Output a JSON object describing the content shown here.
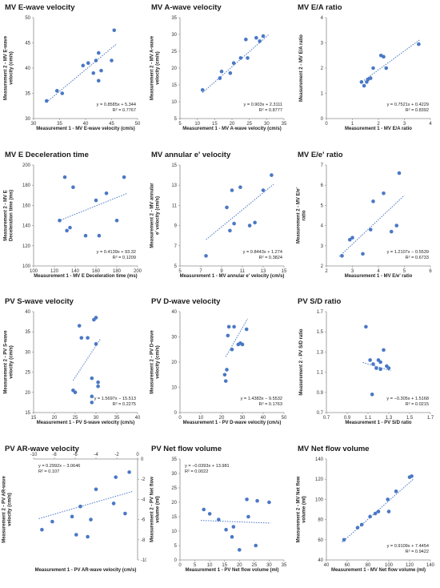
{
  "style": {
    "point_color": "#4a78c4",
    "trend_color": "#4a78c4",
    "axis_color": "#8c8c8c"
  },
  "chart_data": [
    {
      "type": "scatter",
      "title": "MV E-wave velocity",
      "xlabel": "Measurement 1 - MV E-wave velocity (cm/s)",
      "ylabel": "Measurement 2 - MV E-wave velocity (cm/s)",
      "xlim": [
        30,
        50
      ],
      "ylim": [
        30,
        50
      ],
      "xticks": [
        30,
        35,
        40,
        45,
        50
      ],
      "yticks": [
        30,
        35,
        40,
        45,
        50
      ],
      "points": [
        [
          32.5,
          33.5
        ],
        [
          34.5,
          35.5
        ],
        [
          35.5,
          35.0
        ],
        [
          39.5,
          40.5
        ],
        [
          40.5,
          41.0
        ],
        [
          41.5,
          39.0
        ],
        [
          42.0,
          41.5
        ],
        [
          42.5,
          43.0
        ],
        [
          42.5,
          37.5
        ],
        [
          43.0,
          39.5
        ],
        [
          45.0,
          41.5
        ],
        [
          45.5,
          47.5
        ]
      ],
      "trend": {
        "slope": 0.8585,
        "intercept": 5.344,
        "x_range": [
          32.5,
          46
        ]
      },
      "equation": [
        "y = 0.8585x + 5.344",
        "R² = 0.7767"
      ],
      "eq_pos": "bottom-right"
    },
    {
      "type": "scatter",
      "title": "MV A-wave velocity",
      "xlabel": "Measurement 1 - MV A-wave velocity (cm/s)",
      "ylabel": "Measurement 2 - MV A-wave velocity (cm/s)",
      "xlim": [
        5,
        35
      ],
      "ylim": [
        5,
        35
      ],
      "xticks": [
        5,
        10,
        15,
        20,
        25,
        30,
        35
      ],
      "yticks": [
        5,
        10,
        15,
        20,
        25,
        30,
        35
      ],
      "points": [
        [
          11.5,
          13.5
        ],
        [
          16.5,
          17.0
        ],
        [
          17.0,
          19.0
        ],
        [
          19.5,
          18.5
        ],
        [
          20.5,
          21.5
        ],
        [
          22.5,
          23.0
        ],
        [
          24.0,
          28.5
        ],
        [
          24.5,
          23.0
        ],
        [
          27.0,
          29.0
        ],
        [
          28.0,
          28.0
        ],
        [
          29.0,
          29.5
        ]
      ],
      "trend": {
        "slope": 0.903,
        "intercept": 2.3111,
        "x_range": [
          11.5,
          30.5
        ]
      },
      "equation": [
        "y = 0.903x + 2.3111",
        "R² = 0.8777"
      ],
      "eq_pos": "bottom-right"
    },
    {
      "type": "scatter",
      "title": "MV E/A ratio",
      "xlabel": "Measurement 1 - MV E/A ratio",
      "ylabel": "Measurement 2 - MV E/A ratio",
      "xlim": [
        0,
        4
      ],
      "ylim": [
        0,
        4
      ],
      "xticks": [
        0,
        1,
        2,
        3,
        4
      ],
      "yticks": [
        0,
        1,
        2,
        3,
        4
      ],
      "points": [
        [
          1.35,
          1.45
        ],
        [
          1.45,
          1.3
        ],
        [
          1.55,
          1.45
        ],
        [
          1.6,
          1.55
        ],
        [
          1.7,
          1.6
        ],
        [
          1.8,
          2.0
        ],
        [
          2.1,
          2.5
        ],
        [
          2.2,
          2.45
        ],
        [
          2.3,
          2.0
        ],
        [
          3.55,
          2.95
        ]
      ],
      "trend": {
        "slope": 0.7521,
        "intercept": 0.4229,
        "x_range": [
          1.3,
          3.6
        ]
      },
      "equation": [
        "y = 0.7521x + 0.4229",
        "R² = 0.8392"
      ],
      "eq_pos": "bottom-right"
    },
    {
      "type": "scatter",
      "title": "MV E Deceleration time",
      "xlabel": "Measurement 1 - MV E Deceleration time (ms)",
      "ylabel": "Measurement 2 - MV E Deceleration time (ms)",
      "xlim": [
        100,
        200
      ],
      "ylim": [
        100,
        200
      ],
      "xticks": [
        100,
        120,
        140,
        160,
        180,
        200
      ],
      "yticks": [
        100,
        120,
        140,
        160,
        180,
        200
      ],
      "points": [
        [
          125,
          145
        ],
        [
          130,
          188
        ],
        [
          132,
          135
        ],
        [
          135,
          138
        ],
        [
          138,
          178
        ],
        [
          150,
          130
        ],
        [
          160,
          165
        ],
        [
          163,
          130
        ],
        [
          170,
          172
        ],
        [
          180,
          145
        ],
        [
          187,
          188
        ]
      ],
      "trend": {
        "slope": 0.4139,
        "intercept": 93.32,
        "x_range": [
          124,
          190
        ]
      },
      "equation": [
        "y = 0.4139x + 93.32",
        "R² = 0.1209"
      ],
      "eq_pos": "bottom-right"
    },
    {
      "type": "scatter",
      "title": "MV annular e' velocity",
      "xlabel": "Measurement 1 - MV annular e' velocity (cm/s)",
      "ylabel": "Measurement 2 - MV annular e' velocity (cm/s)",
      "xlim": [
        5,
        15
      ],
      "ylim": [
        5,
        15
      ],
      "xticks": [
        5,
        7,
        9,
        11,
        13,
        15
      ],
      "yticks": [
        5,
        7,
        9,
        11,
        13,
        15
      ],
      "points": [
        [
          7.5,
          6.0
        ],
        [
          9.5,
          10.8
        ],
        [
          9.8,
          8.5
        ],
        [
          10.0,
          12.5
        ],
        [
          10.2,
          9.2
        ],
        [
          10.8,
          12.8
        ],
        [
          11.7,
          9.0
        ],
        [
          12.2,
          9.3
        ],
        [
          13.0,
          12.5
        ],
        [
          13.8,
          14.0
        ]
      ],
      "trend": {
        "slope": 0.8443,
        "intercept": 1.274,
        "x_range": [
          7.5,
          14
        ]
      },
      "equation": [
        "y = 0.8443x + 1.274",
        "R² = 0.3824"
      ],
      "eq_pos": "bottom-right"
    },
    {
      "type": "scatter",
      "title": "MV E/e' ratio",
      "xlabel": "Measurement 1 - MV E/e' ratio",
      "ylabel": "Measurement 2 - MV E/e' ratio",
      "xlim": [
        2,
        6
      ],
      "ylim": [
        2,
        7
      ],
      "xticks": [
        2,
        3,
        4,
        5,
        6
      ],
      "yticks": [
        2,
        3,
        4,
        5,
        6,
        7
      ],
      "points": [
        [
          2.6,
          2.5
        ],
        [
          2.9,
          3.3
        ],
        [
          3.0,
          3.4
        ],
        [
          3.4,
          2.6
        ],
        [
          3.7,
          3.8
        ],
        [
          3.8,
          5.2
        ],
        [
          4.2,
          5.6
        ],
        [
          4.5,
          3.7
        ],
        [
          4.7,
          4.0
        ],
        [
          4.8,
          6.6
        ]
      ],
      "trend": {
        "slope": 1.2107,
        "intercept": -0.5539,
        "x_range": [
          2.5,
          5.0
        ]
      },
      "equation": [
        "y = 1.2107x − 0.5539",
        "R² = 0.6733"
      ],
      "eq_pos": "bottom-right"
    },
    {
      "type": "scatter",
      "title": "PV S-wave velocity",
      "xlabel": "Measurement 1 - PV S-wave velocity (cm/s)",
      "ylabel": "Measurement 2 - PV S-wave velocity (cm/s)",
      "xlim": [
        15,
        40
      ],
      "ylim": [
        15,
        40
      ],
      "xticks": [
        15,
        20,
        25,
        30,
        35,
        40
      ],
      "yticks": [
        15,
        20,
        25,
        30,
        35,
        40
      ],
      "points": [
        [
          24.5,
          20.5
        ],
        [
          25.0,
          20.0
        ],
        [
          26.0,
          36.5
        ],
        [
          26.5,
          33.5
        ],
        [
          28.0,
          33.5
        ],
        [
          29.0,
          23.5
        ],
        [
          29.5,
          38.0
        ],
        [
          30.0,
          32.0
        ],
        [
          30.0,
          38.5
        ],
        [
          30.5,
          22.5
        ],
        [
          30.5,
          21.5
        ],
        [
          29.0,
          19.0
        ],
        [
          29.0,
          17.5
        ]
      ],
      "trend": {
        "slope": 1.5697,
        "intercept": -15.513,
        "x_range": [
          24.5,
          31
        ]
      },
      "equation": [
        "y = 1.5697x − 15.513",
        "R² = 0.2275"
      ],
      "eq_pos": "bottom-right"
    },
    {
      "type": "scatter",
      "title": "PV D-wave velocity",
      "xlabel": "Measurement 1 - PV D-wave velocity (cm/s)",
      "ylabel": "Measurement 2 - PV D-wave velocity (cm/s)",
      "xlim": [
        0,
        50
      ],
      "ylim": [
        0,
        40
      ],
      "xticks": [
        0,
        10,
        20,
        30,
        40,
        50
      ],
      "yticks": [
        0,
        10,
        20,
        30,
        40
      ],
      "points": [
        [
          21.5,
          15.0
        ],
        [
          22.0,
          12.5
        ],
        [
          22.5,
          17.0
        ],
        [
          23.0,
          30.5
        ],
        [
          23.5,
          34.0
        ],
        [
          25.0,
          25.0
        ],
        [
          26.0,
          34.0
        ],
        [
          28.0,
          27.0
        ],
        [
          29.0,
          27.5
        ],
        [
          30.0,
          27.0
        ],
        [
          32.0,
          33.0
        ]
      ],
      "trend": {
        "slope": 1.4383,
        "intercept": -9.5532,
        "x_range": [
          22,
          32.5
        ]
      },
      "equation": [
        "y = 1.4383x − 9.5532",
        "R² = 0.1763"
      ],
      "eq_pos": "bottom-right"
    },
    {
      "type": "scatter",
      "title": "PV S/D ratio",
      "xlabel": "Measurement 1 - PV S/D ratio",
      "ylabel": "Measurement 2 - PV S/D ratio",
      "xlim": [
        0.7,
        1.7
      ],
      "ylim": [
        0.7,
        1.7
      ],
      "xticks": [
        0.7,
        0.9,
        1.1,
        1.3,
        1.5,
        1.7
      ],
      "yticks": [
        0.7,
        0.9,
        1.1,
        1.3,
        1.5,
        1.7
      ],
      "points": [
        [
          1.08,
          1.55
        ],
        [
          1.12,
          1.22
        ],
        [
          1.15,
          1.18
        ],
        [
          1.18,
          1.14
        ],
        [
          1.2,
          1.22
        ],
        [
          1.22,
          1.2
        ],
        [
          1.22,
          1.13
        ],
        [
          1.25,
          1.32
        ],
        [
          1.28,
          1.16
        ],
        [
          1.3,
          1.14
        ],
        [
          1.14,
          0.88
        ]
      ],
      "trend": {
        "slope": -0.305,
        "intercept": 1.5168,
        "x_range": [
          1.05,
          1.32
        ]
      },
      "equation": [
        "y = −0.305x + 1.5168",
        "R² = 0.0215"
      ],
      "eq_pos": "bottom-right"
    },
    {
      "type": "scatter",
      "title": "PV AR-wave velocity",
      "xlabel": "Measurement 1 - PV AR-wave velocity (cm/s)",
      "ylabel": "Measurement 2 - PV AR-wave velocity (cm/s)",
      "xlim": [
        -10,
        0
      ],
      "ylim": [
        -10,
        0
      ],
      "xticks": [
        -10,
        -8,
        -6,
        -4,
        -2,
        0
      ],
      "yticks": [
        -10,
        -8,
        -6,
        -4,
        -2,
        0
      ],
      "axes_origin": "top-right",
      "points": [
        [
          -9.2,
          -7.0
        ],
        [
          -8.2,
          -6.2
        ],
        [
          -6.3,
          -5.7
        ],
        [
          -5.9,
          -7.5
        ],
        [
          -5.5,
          -4.7
        ],
        [
          -4.8,
          -7.7
        ],
        [
          -4.5,
          -6.0
        ],
        [
          -4.0,
          -3.0
        ],
        [
          -2.3,
          -4.4
        ],
        [
          -2.1,
          -1.8
        ],
        [
          -1.2,
          -5.4
        ],
        [
          -0.8,
          -1.3
        ]
      ],
      "trend": {
        "slope": 0.2992,
        "intercept": -3.0646,
        "x_range": [
          -9.5,
          -0.5
        ]
      },
      "equation": [
        "y = 0.2992x − 3.0646",
        "R² = 0.107"
      ],
      "eq_pos": "top-left"
    },
    {
      "type": "scatter",
      "title": "PV Net flow volume",
      "xlabel": "Measurement 1 - PV Net flow volume (ml)",
      "ylabel": "Measurement 2 - PV Net flow volume (ml)",
      "xlim": [
        0,
        35
      ],
      "ylim": [
        0,
        35
      ],
      "xticks": [
        0,
        5,
        10,
        15,
        20,
        25,
        30,
        35
      ],
      "yticks": [
        0,
        5,
        10,
        15,
        20,
        25,
        30,
        35
      ],
      "points": [
        [
          8.0,
          17.5
        ],
        [
          10.0,
          16.0
        ],
        [
          13.0,
          14.0
        ],
        [
          15.5,
          10.5
        ],
        [
          17.5,
          8.0
        ],
        [
          18.0,
          11.5
        ],
        [
          20.0,
          3.5
        ],
        [
          22.5,
          21.0
        ],
        [
          23.0,
          15.0
        ],
        [
          25.5,
          5.0
        ],
        [
          26.0,
          20.5
        ],
        [
          30.0,
          20.0
        ]
      ],
      "trend": {
        "slope": -0.0393,
        "intercept": 13.981,
        "x_range": [
          7,
          30.5
        ]
      },
      "equation": [
        "y = −0.0393x + 13.981",
        "R² = 0.0022"
      ],
      "eq_pos": "top-left"
    },
    {
      "type": "scatter",
      "title": "MV Net flow volume",
      "xlabel": "Measurement 1 - MV Net flow volume (ml)",
      "ylabel": "Measurement 2 - MV Net flow volume (ml)",
      "xlim": [
        40,
        140
      ],
      "ylim": [
        40,
        140
      ],
      "xticks": [
        40,
        60,
        80,
        100,
        120,
        140
      ],
      "yticks": [
        40,
        60,
        80,
        100,
        120,
        140
      ],
      "points": [
        [
          57,
          60
        ],
        [
          70,
          72
        ],
        [
          74,
          75
        ],
        [
          82,
          83
        ],
        [
          87,
          86
        ],
        [
          90,
          88
        ],
        [
          99,
          100
        ],
        [
          100,
          88
        ],
        [
          107,
          108
        ],
        [
          120,
          122
        ],
        [
          122,
          123
        ]
      ],
      "trend": {
        "slope": 0.9109,
        "intercept": 7.4454,
        "x_range": [
          55,
          124
        ]
      },
      "equation": [
        "y = 0.9109x + 7.4454",
        "R² = 0.9422"
      ],
      "eq_pos": "bottom-right"
    }
  ]
}
